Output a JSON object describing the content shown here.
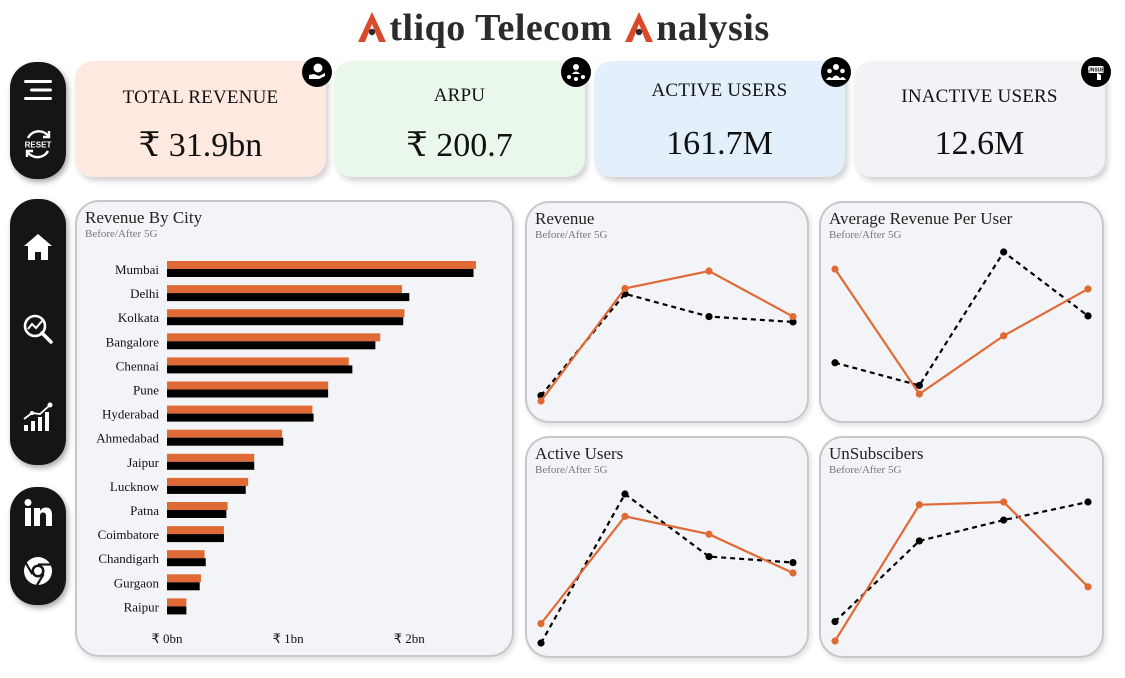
{
  "header": {
    "title_a1": "tliqo Telecom ",
    "title_a2": "nalysis"
  },
  "colors": {
    "after": "#e06a35",
    "before": "#000000"
  },
  "sidebar": {
    "top": [
      {
        "icon": "menu-icon"
      },
      {
        "icon": "reset-icon",
        "label": "RESET"
      }
    ],
    "nav": [
      {
        "icon": "home-icon"
      },
      {
        "icon": "analytics-search-icon"
      },
      {
        "icon": "growth-chart-icon"
      }
    ],
    "social": [
      {
        "icon": "linkedin-icon"
      },
      {
        "icon": "chrome-icon"
      }
    ]
  },
  "kpis": [
    {
      "label": "TOTAL REVENUE",
      "value": "₹ 31.9bn",
      "bg": "#fde9df",
      "icon": "revenue-hand-icon"
    },
    {
      "label": "ARPU",
      "value": "₹ 200.7",
      "bg": "#e9f8ea",
      "icon": "user-network-icon"
    },
    {
      "label": "ACTIVE USERS",
      "value": "161.7M",
      "bg": "#e3f0fb",
      "icon": "team-icon"
    },
    {
      "label": "INACTIVE USERS",
      "value": "12.6M",
      "bg": "#f2f3f7",
      "icon": "unsubscribe-icon",
      "badge_text": "UNSUB"
    }
  ],
  "chart_data": [
    {
      "type": "bar",
      "orientation": "horizontal",
      "title": "Revenue By City",
      "subtitle": "Before/After 5G",
      "categories": [
        "Mumbai",
        "Delhi",
        "Kolkata",
        "Bangalore",
        "Chennai",
        "Pune",
        "Hyderabad",
        "Ahmedabad",
        "Jaipur",
        "Lucknow",
        "Patna",
        "Coimbatore",
        "Chandigarh",
        "Gurgaon",
        "Raipur"
      ],
      "series": [
        {
          "values": [
            2.55,
            1.94,
            1.96,
            1.76,
            1.5,
            1.33,
            1.2,
            0.95,
            0.72,
            0.67,
            0.5,
            0.47,
            0.31,
            0.28,
            0.16
          ]
        },
        {
          "values": [
            2.53,
            2.0,
            1.95,
            1.72,
            1.53,
            1.33,
            1.21,
            0.96,
            0.72,
            0.65,
            0.49,
            0.47,
            0.32,
            0.27,
            0.16
          ]
        }
      ],
      "xticks": [
        "₹ 0bn",
        "₹ 1bn",
        "₹ 2bn"
      ],
      "xlim": [
        0,
        2.6
      ],
      "grid": false
    },
    {
      "type": "line",
      "title": "Revenue",
      "subtitle": "Before/After 5G",
      "series": [
        {
          "values": [
            0.0,
            0.84,
            0.97,
            0.63
          ]
        },
        {
          "values": [
            0.04,
            0.8,
            0.63,
            0.59
          ]
        }
      ]
    },
    {
      "type": "line",
      "title": "Average Revenue Per User",
      "subtitle": "Before/After 5G",
      "series": [
        {
          "values": [
            0.88,
            0.0,
            0.41,
            0.74
          ]
        },
        {
          "values": [
            0.22,
            0.06,
            1.0,
            0.55
          ]
        }
      ]
    },
    {
      "type": "line",
      "title": "Active Users",
      "subtitle": "Before/After 5G",
      "series": [
        {
          "values": [
            0.13,
            0.85,
            0.73,
            0.47
          ]
        },
        {
          "values": [
            0.0,
            1.0,
            0.58,
            0.54
          ]
        }
      ]
    },
    {
      "type": "line",
      "title": "UnSubscibers",
      "subtitle": "Before/After 5G",
      "series": [
        {
          "values": [
            0.0,
            0.98,
            1.0,
            0.39
          ]
        },
        {
          "values": [
            0.14,
            0.72,
            0.87,
            1.0
          ]
        }
      ]
    }
  ]
}
